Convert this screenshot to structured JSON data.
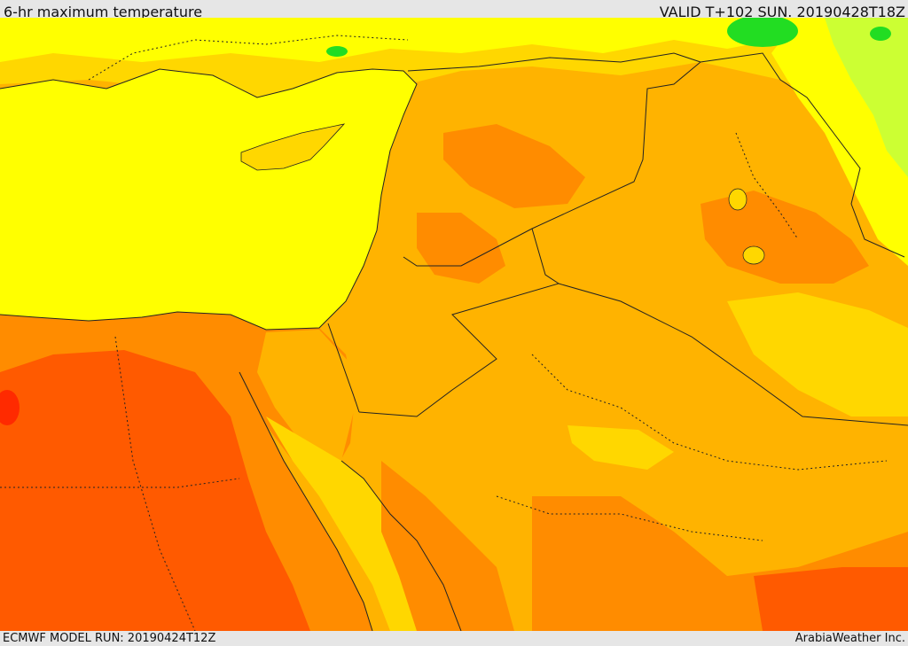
{
  "header": {
    "title": "6-hr maximum temperature",
    "valid": "VALID T+102 SUN. 20190428T18Z"
  },
  "footer": {
    "model_run": "ECMWF MODEL RUN: 20190424T12Z",
    "credit": "ArabiaWeather Inc."
  },
  "colors": {
    "cool_green": "#22dd22",
    "lime": "#ccff33",
    "yellow": "#ffff00",
    "gold": "#ffd700",
    "light_orange": "#ffb300",
    "orange": "#ff8c00",
    "red_orange": "#ff5a00",
    "red": "#ff2a00"
  }
}
